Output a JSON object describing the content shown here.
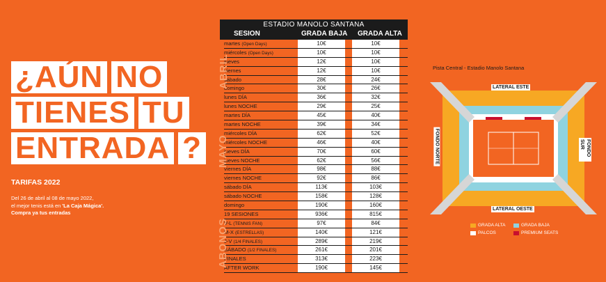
{
  "headline": {
    "rows": [
      [
        "¿AÚN",
        "NO"
      ],
      [
        "TIENES",
        "TU"
      ],
      [
        "ENTRADA",
        "?"
      ]
    ]
  },
  "tarifas": "TARIFAS 2022",
  "description": {
    "line1": "Del 26 de abril al 08 de mayo 2022,",
    "line2a": "el mejor tenis está en ",
    "line2b": "'La Caja Mágica'.",
    "line3": "Compra ya tus entradas"
  },
  "table": {
    "title": "ESTADIO MANOLO SANTANA",
    "col_session": "SESION",
    "col_baja": "GRADA BAJA",
    "col_alta": "GRADA ALTA",
    "groups": [
      "ABRIL",
      "MAYO",
      "ABONOS"
    ],
    "rows": [
      {
        "label": "martes",
        "sub": "(Open Days)",
        "baja": "10€",
        "alta": "10€"
      },
      {
        "label": "miércoles",
        "sub": "(Open Days)",
        "baja": "10€",
        "alta": "10€"
      },
      {
        "label": "jueves",
        "sub": "",
        "baja": "12€",
        "alta": "10€"
      },
      {
        "label": "viernes",
        "sub": "",
        "baja": "12€",
        "alta": "10€"
      },
      {
        "label": "sábado",
        "sub": "",
        "baja": "28€",
        "alta": "24€"
      },
      {
        "label": "domingo",
        "sub": "",
        "baja": "30€",
        "alta": "26€"
      },
      {
        "label": "lunes DÍA",
        "sub": "",
        "baja": "36€",
        "alta": "32€"
      },
      {
        "label": "lunes NOCHE",
        "sub": "",
        "baja": "29€",
        "alta": "25€"
      },
      {
        "label": "martes DÍA",
        "sub": "",
        "baja": "45€",
        "alta": "40€"
      },
      {
        "label": "martes NOCHE",
        "sub": "",
        "baja": "39€",
        "alta": "34€"
      },
      {
        "label": "miércoles DÍA",
        "sub": "",
        "baja": "62€",
        "alta": "52€"
      },
      {
        "label": "miércoles NOCHE",
        "sub": "",
        "baja": "46€",
        "alta": "40€"
      },
      {
        "label": "jueves DÍA",
        "sub": "",
        "baja": "70€",
        "alta": "60€"
      },
      {
        "label": "jueves NOCHE",
        "sub": "",
        "baja": "62€",
        "alta": "56€"
      },
      {
        "label": "viernes DÍA",
        "sub": "",
        "baja": "98€",
        "alta": "88€"
      },
      {
        "label": "viernes NOCHE",
        "sub": "",
        "baja": "92€",
        "alta": "86€"
      },
      {
        "label": "sábado DÍA",
        "sub": "",
        "baja": "113€",
        "alta": "103€"
      },
      {
        "label": "sábado NOCHE",
        "sub": "",
        "baja": "158€",
        "alta": "128€"
      },
      {
        "label": "domingo",
        "sub": "",
        "baja": "190€",
        "alta": "160€"
      },
      {
        "label": "19 SESIONES",
        "sub": "",
        "baja": "936€",
        "alta": "815€"
      },
      {
        "label": "V-L",
        "sub": "(TENNIS FAN)",
        "baja": "97€",
        "alta": "84€"
      },
      {
        "label": "M-X",
        "sub": "(ESTRELLAS)",
        "baja": "140€",
        "alta": "121€"
      },
      {
        "label": "J-V",
        "sub": "(1/4 FINALES)",
        "baja": "289€",
        "alta": "219€"
      },
      {
        "label": "SÁBADO",
        "sub": "(1/2 FINALES)",
        "baja": "261€",
        "alta": "201€"
      },
      {
        "label": "FINALES",
        "sub": "",
        "baja": "313€",
        "alta": "223€"
      },
      {
        "label": "AFTER WORK",
        "sub": "",
        "baja": "190€",
        "alta": "145€"
      }
    ]
  },
  "map": {
    "title": "Pista Central - Estadio Manolo Santana",
    "lateral_este": "LATERAL ESTE",
    "lateral_oeste": "LATERAL OESTE",
    "fondo_norte": "FONDO NORTE",
    "fondo_sur": "FONDO SUR",
    "colors": {
      "grada_alta": "#f7a823",
      "grada_baja": "#8fd3e0",
      "palcos": "#ffffff",
      "premium": "#c8102e",
      "court": "#f26522",
      "walkway": "#d6d6d6"
    }
  },
  "legend": {
    "grada_alta": "GRADA ALTA",
    "grada_baja": "GRADA BAJA",
    "palcos": "PALCOS",
    "premium": "PREMIUM SEATS"
  }
}
